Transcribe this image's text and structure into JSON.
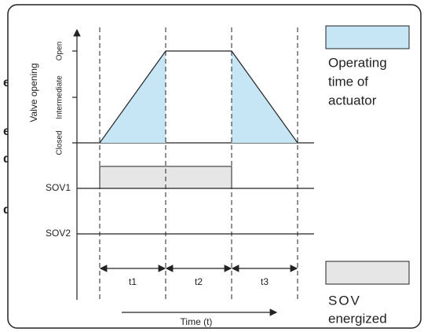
{
  "edge_fragments": [
    "e",
    "e",
    "d",
    "d"
  ],
  "y_axis": {
    "title": "Valve opening",
    "levels": [
      "Closed",
      "Intermediate",
      "Open"
    ]
  },
  "signals": [
    "SOV1",
    "SOV2"
  ],
  "intervals": [
    "t1",
    "t2",
    "t3"
  ],
  "x_axis": {
    "title": "Time (t)"
  },
  "legend": [
    {
      "lines": [
        "Operating",
        "time of",
        "actuator"
      ]
    },
    {
      "lines": [
        "SOV",
        "energized"
      ]
    }
  ]
}
